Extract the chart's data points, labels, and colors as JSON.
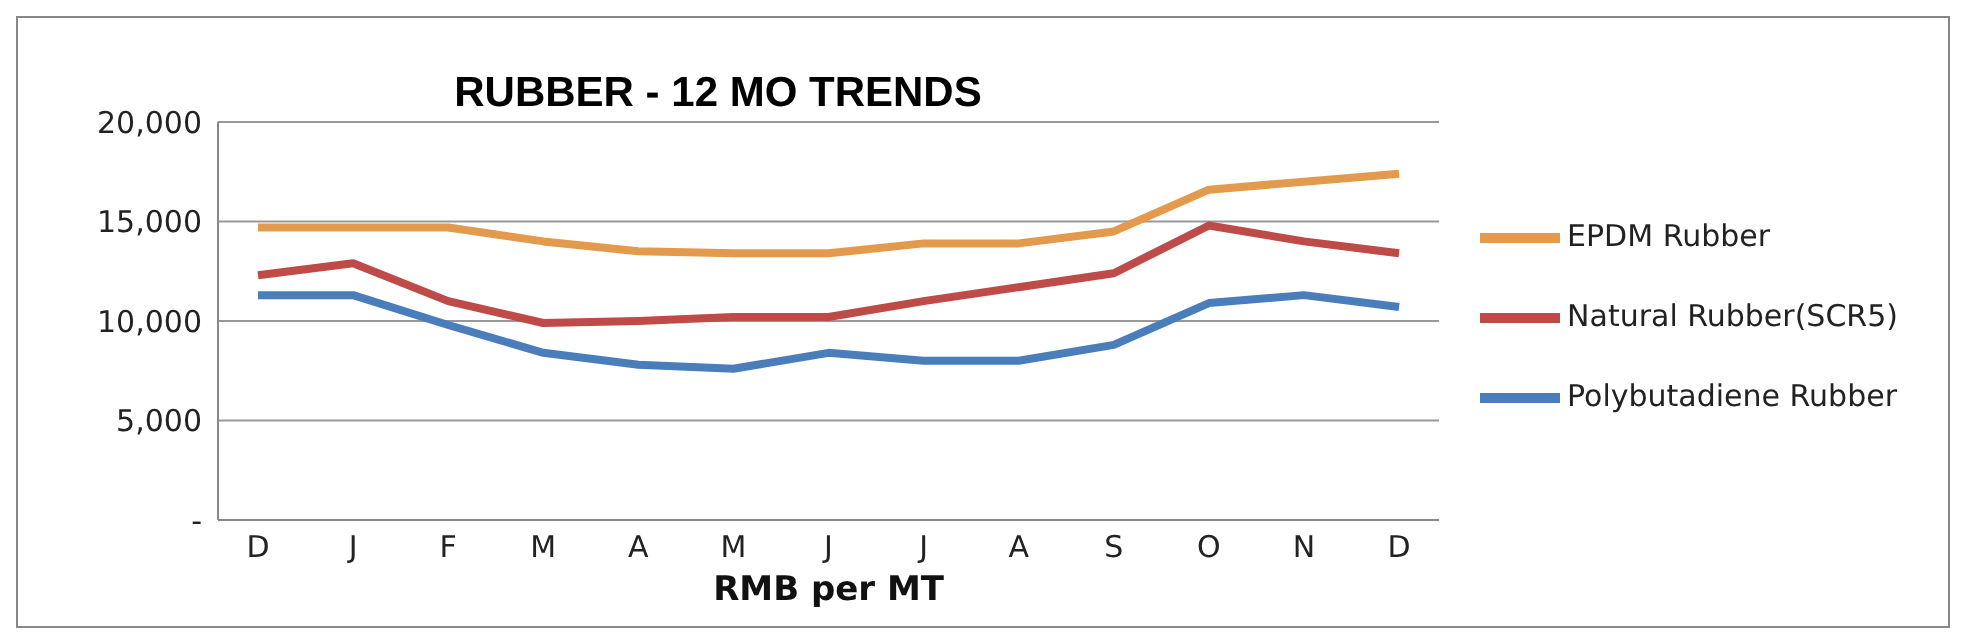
{
  "chart_data": {
    "type": "line",
    "title": "RUBBER - 12 MO TRENDS",
    "xlabel": "RMB per MT",
    "categories": [
      "D",
      "J",
      "F",
      "M",
      "A",
      "M",
      "J",
      "J",
      "A",
      "S",
      "O",
      "N",
      "D"
    ],
    "series": [
      {
        "name": "Polybutadiene Rubber",
        "color": "#4a7ebb",
        "values": [
          11300,
          11300,
          9800,
          8400,
          7800,
          7600,
          8400,
          8000,
          8000,
          8800,
          10900,
          11300,
          10700
        ]
      },
      {
        "name": "Natural Rubber(SCR5)",
        "color": "#be4b48",
        "values": [
          12300,
          12900,
          11000,
          9900,
          10000,
          10200,
          10200,
          11000,
          11700,
          12400,
          14800,
          14000,
          13400
        ]
      },
      {
        "name": "EPDM Rubber",
        "color": "#e39a4c",
        "values": [
          14700,
          14700,
          14700,
          14000,
          13500,
          13400,
          13400,
          13900,
          13900,
          14500,
          16600,
          17000,
          17400
        ]
      }
    ],
    "ylim": [
      0,
      20000
    ],
    "yticks": [
      {
        "value": 0,
        "label": "-"
      },
      {
        "value": 5000,
        "label": "5,000"
      },
      {
        "value": 10000,
        "label": "10,000"
      },
      {
        "value": 15000,
        "label": "15,000"
      },
      {
        "value": 20000,
        "label": "20,000"
      }
    ],
    "grid": "y",
    "legend": "right",
    "marker": "none",
    "line_style": "solid"
  }
}
